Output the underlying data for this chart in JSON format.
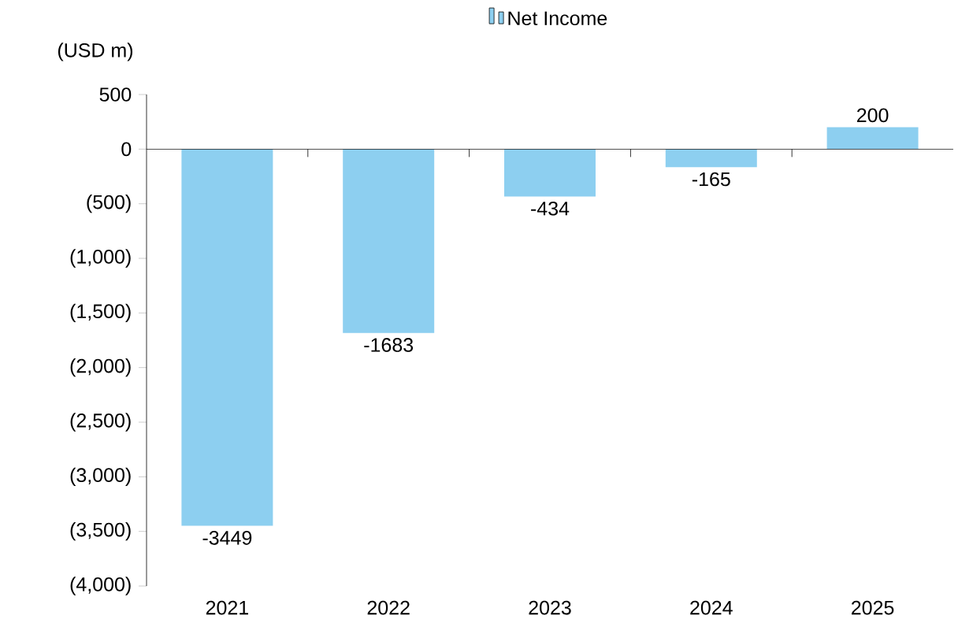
{
  "chart_data": {
    "type": "bar",
    "ylabel": "(USD m)",
    "categories": [
      "2021",
      "2022",
      "2023",
      "2024",
      "2025"
    ],
    "series": [
      {
        "name": "Net Income",
        "color": "#8DCFF0",
        "values": [
          -3449,
          -1683,
          -434,
          -165,
          200
        ]
      }
    ],
    "ylim": [
      -4000,
      500
    ],
    "yticks": [
      500,
      0,
      {
        "value": -500,
        "label": "(500)"
      },
      {
        "value": -1000,
        "label": "(1,000)"
      },
      {
        "value": -1500,
        "label": "(1,500)"
      },
      {
        "value": -2000,
        "label": "(2,000)"
      },
      {
        "value": -2500,
        "label": "(2,500)"
      },
      {
        "value": -3000,
        "label": "(3,000)"
      },
      {
        "value": -3500,
        "label": "(3,500)"
      },
      {
        "value": -4000,
        "label": "(4,000)"
      }
    ],
    "data_labels": true,
    "legend": "top"
  }
}
